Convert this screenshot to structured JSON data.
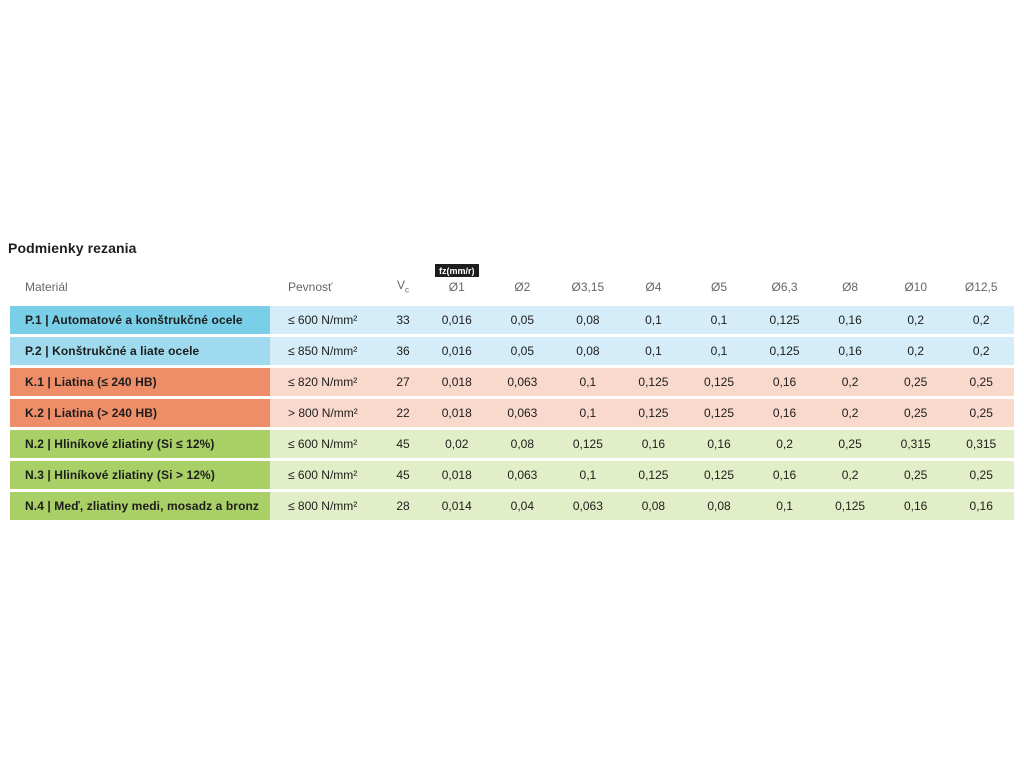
{
  "title": "Podmienky rezania",
  "colors": {
    "text_dark": "#1d1d1b",
    "header_gray": "#64666a",
    "badge_bg": "#1d1d1b",
    "badge_text": "#ffffff"
  },
  "table": {
    "headers": {
      "material": "Materiál",
      "strength": "Pevnosť",
      "vc_main": "V",
      "vc_sub": "c",
      "fz_badge": "fz(mm/r)",
      "diameters": [
        "Ø1",
        "Ø2",
        "Ø3,15",
        "Ø4",
        "Ø5",
        "Ø6,3",
        "Ø8",
        "Ø10",
        "Ø12,5"
      ]
    },
    "rows": [
      {
        "material": "P.1 | Automatové a konštrukčné ocele",
        "strength": "≤ 600 N/mm²",
        "vc": "33",
        "fz": [
          "0,016",
          "0,05",
          "0,08",
          "0,1",
          "0,1",
          "0,125",
          "0,16",
          "0,2",
          "0,2"
        ],
        "cell_color": "#79cee8",
        "body_color": "#d4edf8"
      },
      {
        "material": "P.2 | Konštrukčné a liate ocele",
        "strength": "≤ 850 N/mm²",
        "vc": "36",
        "fz": [
          "0,016",
          "0,05",
          "0,08",
          "0,1",
          "0,1",
          "0,125",
          "0,16",
          "0,2",
          "0,2"
        ],
        "cell_color": "#9fdaee",
        "body_color": "#d4edf8"
      },
      {
        "material": "K.1 | Liatina (≤ 240 HB)",
        "strength": "≤ 820 N/mm²",
        "vc": "27",
        "fz": [
          "0,018",
          "0,063",
          "0,1",
          "0,125",
          "0,125",
          "0,16",
          "0,2",
          "0,25",
          "0,25"
        ],
        "cell_color": "#ee8e69",
        "body_color": "#fad9cd"
      },
      {
        "material": "K.2 | Liatina (> 240 HB)",
        "strength": "> 800 N/mm²",
        "vc": "22",
        "fz": [
          "0,018",
          "0,063",
          "0,1",
          "0,125",
          "0,125",
          "0,16",
          "0,2",
          "0,25",
          "0,25"
        ],
        "cell_color": "#ee8e69",
        "body_color": "#fad9cd"
      },
      {
        "material": "N.2 | Hliníkové zliatiny (Si ≤ 12%)",
        "strength": "≤ 600 N/mm²",
        "vc": "45",
        "fz": [
          "0,02",
          "0,08",
          "0,125",
          "0,16",
          "0,16",
          "0,2",
          "0,25",
          "0,315",
          "0,315"
        ],
        "cell_color": "#a9cf67",
        "body_color": "#e2eec7"
      },
      {
        "material": "N.3 | Hliníkové zliatiny (Si > 12%)",
        "strength": "≤ 600 N/mm²",
        "vc": "45",
        "fz": [
          "0,018",
          "0,063",
          "0,1",
          "0,125",
          "0,125",
          "0,16",
          "0,2",
          "0,25",
          "0,25"
        ],
        "cell_color": "#a9cf67",
        "body_color": "#e2eec7"
      },
      {
        "material": "N.4 | Meď, zliatiny medi, mosadz a bronz",
        "strength": "≤ 800 N/mm²",
        "vc": "28",
        "fz": [
          "0,014",
          "0,04",
          "0,063",
          "0,08",
          "0,08",
          "0,1",
          "0,125",
          "0,16",
          "0,16"
        ],
        "cell_color": "#a9cf67",
        "body_color": "#e2eec7"
      }
    ]
  }
}
